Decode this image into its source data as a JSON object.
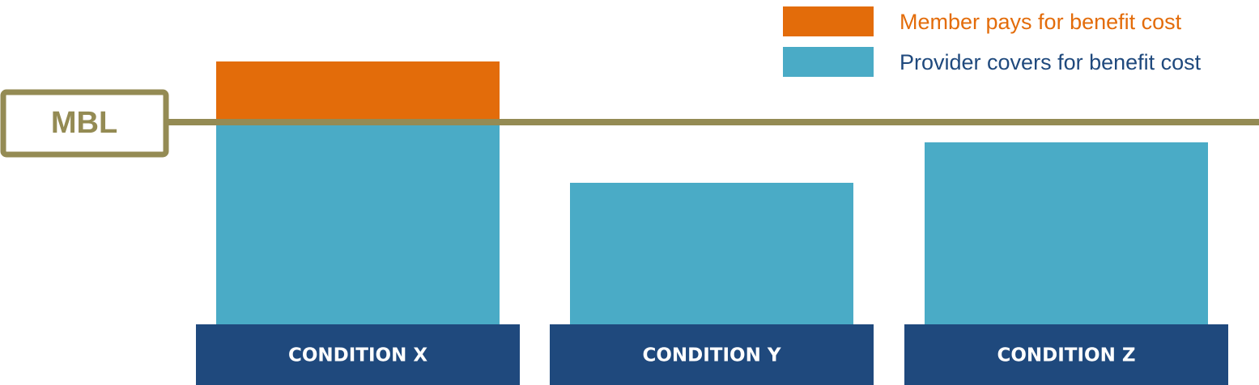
{
  "colors": {
    "member": "#e36c0a",
    "provider": "#4aabc6",
    "mbl": "#948b54",
    "condition_band": "#1f497d",
    "legend_member_text": "#e36c0a",
    "legend_provider_text": "#1f497d",
    "condition_text": "#ffffff"
  },
  "chart_data": {
    "type": "bar",
    "stacked": true,
    "categories": [
      "CONDITION X",
      "CONDITION Y",
      "CONDITION Z"
    ],
    "series": [
      {
        "name": "Provider covers for benefit cost",
        "values": [
          100,
          70,
          90
        ]
      },
      {
        "name": "Member pays for benefit cost",
        "values": [
          30,
          0,
          0
        ]
      }
    ],
    "threshold": {
      "label": "MBL",
      "value": 100
    },
    "ylim": [
      0,
      130
    ],
    "legend_position": "top-right",
    "grid": false
  }
}
